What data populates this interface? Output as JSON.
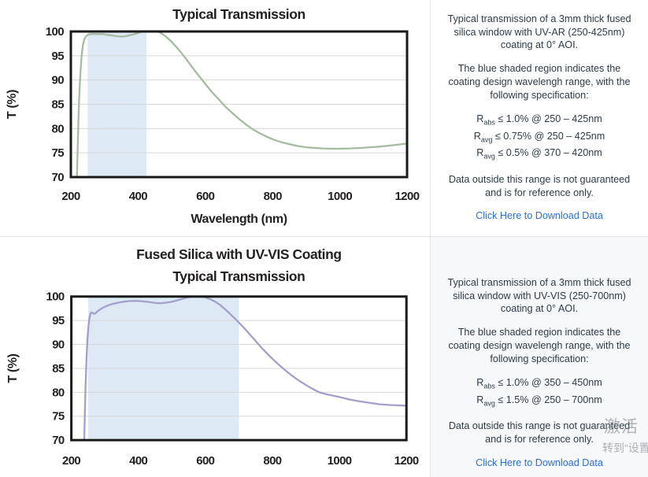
{
  "colors": {
    "link_blue": "#2e6fd2",
    "body_text": "#2e3b49",
    "chart_text": "#231f20",
    "grid": "#d8d8d8",
    "plot_border": "#1a1a1a",
    "shade_blue": "#dde9f5",
    "curve_uvar_green": "#a6bba1",
    "curve_uvvis_purple": "#a39fca",
    "panel_bg": "#f7f8fa",
    "divider": "#e4e4e8"
  },
  "chart_data": [
    {
      "type": "line",
      "title_lines": [
        "Typical Transmission"
      ],
      "xlabel": "Wavelength (nm)",
      "ylabel": "T (%)",
      "xlim": [
        200,
        1200
      ],
      "ylim": [
        70,
        100
      ],
      "xticks": [
        200,
        400,
        600,
        800,
        1000,
        1200
      ],
      "yticks": [
        70,
        75,
        80,
        85,
        90,
        95,
        100
      ],
      "grid": "horizontal",
      "legend": "none",
      "shaded_region": {
        "x0": 250,
        "x1": 425,
        "color": "#dde9f5",
        "meaning": "coating design wavelength range"
      },
      "series": [
        {
          "name": "Fused Silica with UV-AR (250-425nm) coating, 3mm, 0 deg AOI",
          "color": "#a6bba1",
          "points": [
            [
              215,
              62
            ],
            [
              218,
              70
            ],
            [
              221,
              78
            ],
            [
              224,
              85
            ],
            [
              228,
              91
            ],
            [
              232,
              95
            ],
            [
              236,
              97.3
            ],
            [
              240,
              98.4
            ],
            [
              245,
              99.0
            ],
            [
              250,
              99.3
            ],
            [
              260,
              99.45
            ],
            [
              275,
              99.5
            ],
            [
              295,
              99.45
            ],
            [
              315,
              99.25
            ],
            [
              335,
              99.05
            ],
            [
              350,
              98.95
            ],
            [
              365,
              99.05
            ],
            [
              380,
              99.3
            ],
            [
              395,
              99.6
            ],
            [
              410,
              99.95
            ],
            [
              425,
              100.2
            ],
            [
              438,
              100.35
            ],
            [
              450,
              100.25
            ],
            [
              465,
              99.8
            ],
            [
              480,
              99.1
            ],
            [
              495,
              98.2
            ],
            [
              510,
              97.1
            ],
            [
              525,
              95.9
            ],
            [
              540,
              94.6
            ],
            [
              555,
              93.2
            ],
            [
              570,
              91.8
            ],
            [
              585,
              90.5
            ],
            [
              600,
              89.2
            ],
            [
              620,
              87.5
            ],
            [
              640,
              86.0
            ],
            [
              660,
              84.5
            ],
            [
              680,
              83.2
            ],
            [
              700,
              82.0
            ],
            [
              720,
              80.9
            ],
            [
              740,
              79.9
            ],
            [
              760,
              79.1
            ],
            [
              780,
              78.4
            ],
            [
              800,
              77.8
            ],
            [
              825,
              77.2
            ],
            [
              850,
              76.8
            ],
            [
              875,
              76.4
            ],
            [
              900,
              76.15
            ],
            [
              925,
              76.0
            ],
            [
              950,
              75.9
            ],
            [
              975,
              75.85
            ],
            [
              1000,
              75.85
            ],
            [
              1030,
              75.9
            ],
            [
              1060,
              76.0
            ],
            [
              1090,
              76.15
            ],
            [
              1120,
              76.3
            ],
            [
              1150,
              76.5
            ],
            [
              1175,
              76.7
            ],
            [
              1200,
              76.9
            ]
          ]
        }
      ]
    },
    {
      "type": "line",
      "title_lines": [
        "Fused Silica with UV-VIS Coating",
        "Typical Transmission"
      ],
      "xlabel": "",
      "ylabel": "T (%)",
      "xlim": [
        200,
        1200
      ],
      "ylim": [
        70,
        100
      ],
      "xticks": [
        200,
        400,
        600,
        800,
        1000,
        1200
      ],
      "yticks": [
        70,
        75,
        80,
        85,
        90,
        95,
        100
      ],
      "grid": "horizontal",
      "legend": "none",
      "shaded_region": {
        "x0": 250,
        "x1": 700,
        "color": "#dde9f5",
        "meaning": "coating design wavelength range"
      },
      "series": [
        {
          "name": "Fused Silica with UV-VIS (250-700nm) coating, 3mm, 0 deg AOI",
          "color": "#a39fca",
          "points": [
            [
              236,
              62
            ],
            [
              239,
              72
            ],
            [
              242,
              80
            ],
            [
              245,
              86.5
            ],
            [
              248,
              91
            ],
            [
              251,
              93.8
            ],
            [
              254,
              95.5
            ],
            [
              257,
              96.4
            ],
            [
              260,
              96.7
            ],
            [
              263,
              96.6
            ],
            [
              267,
              96.4
            ],
            [
              272,
              96.5
            ],
            [
              278,
              96.9
            ],
            [
              286,
              97.3
            ],
            [
              295,
              97.7
            ],
            [
              308,
              98.1
            ],
            [
              322,
              98.45
            ],
            [
              338,
              98.7
            ],
            [
              355,
              98.9
            ],
            [
              372,
              99.05
            ],
            [
              388,
              99.1
            ],
            [
              404,
              99.05
            ],
            [
              420,
              98.95
            ],
            [
              436,
              98.8
            ],
            [
              452,
              98.65
            ],
            [
              466,
              98.6
            ],
            [
              480,
              98.7
            ],
            [
              495,
              98.85
            ],
            [
              510,
              99.1
            ],
            [
              525,
              99.4
            ],
            [
              540,
              99.7
            ],
            [
              555,
              99.95
            ],
            [
              570,
              100.1
            ],
            [
              585,
              100.05
            ],
            [
              600,
              99.85
            ],
            [
              615,
              99.45
            ],
            [
              630,
              98.9
            ],
            [
              645,
              98.2
            ],
            [
              660,
              97.3
            ],
            [
              675,
              96.3
            ],
            [
              690,
              95.3
            ],
            [
              705,
              94.2
            ],
            [
              720,
              93.1
            ],
            [
              735,
              91.9
            ],
            [
              750,
              90.7
            ],
            [
              765,
              89.5
            ],
            [
              780,
              88.4
            ],
            [
              800,
              87.0
            ],
            [
              820,
              85.7
            ],
            [
              840,
              84.5
            ],
            [
              860,
              83.4
            ],
            [
              880,
              82.4
            ],
            [
              900,
              81.5
            ],
            [
              920,
              80.7
            ],
            [
              940,
              80.0
            ],
            [
              960,
              79.6
            ],
            [
              980,
              79.3
            ],
            [
              1000,
              79.0
            ],
            [
              1030,
              78.5
            ],
            [
              1060,
              78.1
            ],
            [
              1090,
              77.8
            ],
            [
              1120,
              77.5
            ],
            [
              1150,
              77.35
            ],
            [
              1200,
              77.2
            ]
          ]
        }
      ]
    }
  ],
  "panels": {
    "top": {
      "info": {
        "para1": "Typical transmission of a 3mm thick fused silica window with UV-AR (250-425nm) coating at 0° AOI.",
        "para2": "The blue shaded region indicates the coating design wavelengh range, with the following specification:",
        "specs": [
          {
            "sym": "R",
            "sub": "abs",
            "text": " ≤ 1.0% @ 250 – 425nm"
          },
          {
            "sym": "R",
            "sub": "avg",
            "text": " ≤ 0.75% @ 250 – 425nm"
          },
          {
            "sym": "R",
            "sub": "avg",
            "text": " ≤ 0.5% @ 370 – 420nm"
          }
        ],
        "para3": "Data outside this range is not guaranteed and is for reference only.",
        "link": "Click Here to Download Data"
      }
    },
    "bottom": {
      "info": {
        "para1": "Typical transmission of a 3mm thick fused silica window with UV-VIS (250-700nm) coating at 0° AOI.",
        "para2": "The blue shaded region indicates the coating design wavelengh range, with the following specification:",
        "specs": [
          {
            "sym": "R",
            "sub": "abs",
            "text": " ≤ 1.0% @ 350 – 450nm"
          },
          {
            "sym": "R",
            "sub": "avg",
            "text": " ≤ 1.5% @ 250 – 700nm"
          }
        ],
        "para3": "Data outside this range is not guaranteed and is for reference only.",
        "link": "Click Here to Download Data"
      }
    }
  },
  "watermark": {
    "line1": "激活",
    "line2": "转到“设置”"
  }
}
